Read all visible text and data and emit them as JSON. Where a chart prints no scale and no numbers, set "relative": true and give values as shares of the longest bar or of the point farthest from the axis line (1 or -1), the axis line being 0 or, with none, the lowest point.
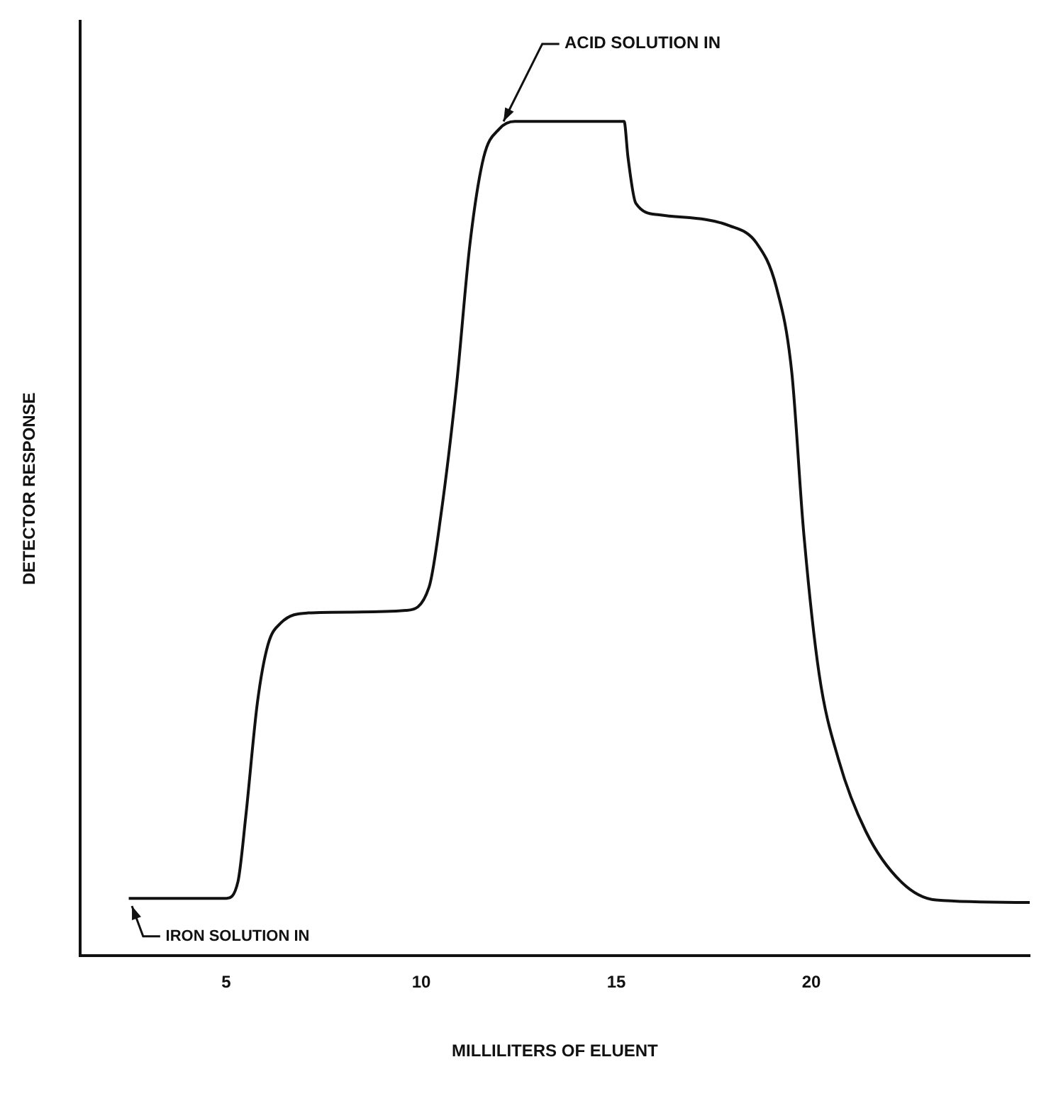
{
  "chart_data": {
    "type": "line",
    "relative": true,
    "xlabel": "MILLILITERS OF ELUENT",
    "ylabel": "DETECTOR RESPONSE",
    "xlim": [
      1.25,
      25.6
    ],
    "xticks": [
      5,
      10,
      15,
      20
    ],
    "grid": false,
    "legend": false,
    "marker": "none",
    "line_style": "solid",
    "series": [
      {
        "color": "#111111",
        "x": [
          2.5,
          5,
          5.3,
          5.5,
          5.8,
          6.07,
          6.4,
          7.1,
          8.2,
          9.6,
          10.2,
          10.5,
          10.9,
          11.25,
          11.6,
          12.0,
          12.4,
          15.2,
          15.3,
          15.5,
          16.1,
          17.9,
          18.6,
          19.1,
          19.5,
          19.8,
          20.2,
          20.7,
          21.4,
          22.3,
          23.2,
          25.6
        ],
        "values": [
          0.069,
          0.069,
          0.089,
          0.167,
          0.304,
          0.373,
          0.399,
          0.411,
          0.412,
          0.414,
          0.442,
          0.527,
          0.682,
          0.854,
          0.957,
          0.991,
          1,
          1,
          0.957,
          0.902,
          0.888,
          0.875,
          0.854,
          0.802,
          0.699,
          0.51,
          0.338,
          0.235,
          0.149,
          0.089,
          0.067,
          0.064
        ]
      }
    ],
    "annotations": [
      {
        "text": "ACID SOLUTION IN",
        "x": 12.0,
        "y": 0.991
      },
      {
        "text": "IRON SOLUTION IN",
        "x": 2.5,
        "y": 0.069
      }
    ]
  }
}
